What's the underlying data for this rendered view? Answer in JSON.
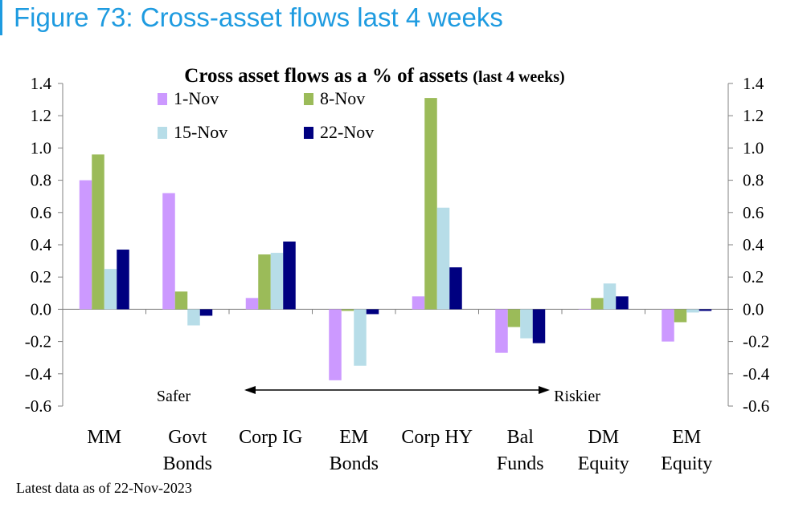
{
  "figure_title": "Figure 73: Cross-asset flows last 4 weeks",
  "footnote": "Latest data as of 22-Nov-2023",
  "chart_data": {
    "type": "bar",
    "title": "Cross asset flows as a % of assets",
    "title_suffix": "(last 4 weeks)",
    "categories": [
      [
        "MM"
      ],
      [
        "Govt",
        "Bonds"
      ],
      [
        "Corp IG"
      ],
      [
        "EM",
        "Bonds"
      ],
      [
        "Corp HY"
      ],
      [
        "Bal",
        "Funds"
      ],
      [
        "DM",
        "Equity"
      ],
      [
        "EM",
        "Equity"
      ]
    ],
    "series": [
      {
        "name": "1-Nov",
        "color": "#cc99ff",
        "values": [
          0.8,
          0.72,
          0.07,
          -0.44,
          0.08,
          -0.27,
          0.0,
          -0.2
        ]
      },
      {
        "name": "8-Nov",
        "color": "#9bbb59",
        "values": [
          0.96,
          0.11,
          0.34,
          -0.01,
          1.31,
          -0.11,
          0.07,
          -0.08
        ]
      },
      {
        "name": "15-Nov",
        "color": "#b7dde8",
        "values": [
          0.25,
          -0.1,
          0.35,
          -0.35,
          0.63,
          -0.18,
          0.16,
          -0.02
        ]
      },
      {
        "name": "22-Nov",
        "color": "#000080",
        "values": [
          0.37,
          -0.04,
          0.42,
          -0.03,
          0.26,
          -0.21,
          0.08,
          -0.01
        ]
      }
    ],
    "ylim": [
      -0.6,
      1.4
    ],
    "yticks": [
      "1.4",
      "1.2",
      "1.0",
      "0.8",
      "0.6",
      "0.4",
      "0.2",
      "0.0",
      "-0.2",
      "-0.4",
      "-0.6"
    ],
    "legend": "top-center, two rows",
    "annotation": {
      "left": "Safer",
      "right": "Riskier"
    }
  }
}
